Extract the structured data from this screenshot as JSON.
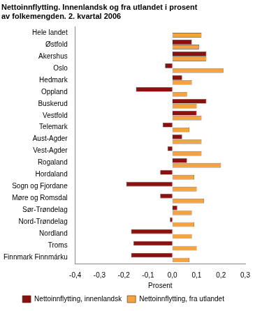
{
  "chart_data": {
    "type": "bar",
    "orientation": "horizontal",
    "title": [
      "Nettoinnflytting. Innenlandsk og fra utlandet i prosent",
      "av folkemengden. 2. kvartal 2006"
    ],
    "x_label": "Prosent",
    "categories": [
      "Hele landet",
      "Østfold",
      "Akershus",
      "Oslo",
      "Hedmark",
      "Oppland",
      "Buskerud",
      "Vestfold",
      "Telemark",
      "Aust-Agder",
      "Vest-Agder",
      "Rogaland",
      "Hordaland",
      "Sogn og Fjordane",
      "Møre og Romsdal",
      "Sør-Trøndelag",
      "Nord-Trøndelag",
      "Nordland",
      "Troms",
      "Finnmark Finnmárku"
    ],
    "series": [
      {
        "name": "Nettoinnflytting, innenlandsk",
        "color": "#8b1010",
        "values": [
          0,
          0.08,
          0.14,
          -0.03,
          0.04,
          -0.15,
          0.14,
          0.1,
          -0.04,
          0.04,
          -0.02,
          0.06,
          -0.05,
          -0.19,
          -0.05,
          0.02,
          -0.01,
          -0.17,
          -0.16,
          -0.17
        ]
      },
      {
        "name": "Nettoinnflytting, fra utlandet",
        "color": "#f5a240",
        "values": [
          0.12,
          0.11,
          0.14,
          0.21,
          0.08,
          0.06,
          0.1,
          0.12,
          0.07,
          0.12,
          0.12,
          0.2,
          0.09,
          0.1,
          0.13,
          0.08,
          0.09,
          0.08,
          0.1,
          0.07
        ]
      }
    ],
    "xlim": [
      -0.4,
      0.3
    ],
    "xticks": [
      {
        "value": -0.4,
        "label": "-0,4"
      },
      {
        "value": -0.3,
        "label": "-0,3"
      },
      {
        "value": -0.2,
        "label": "-0,2"
      },
      {
        "value": -0.1,
        "label": "-0,1"
      },
      {
        "value": 0,
        "label": "0,0"
      },
      {
        "value": 0.1,
        "label": "0,1"
      },
      {
        "value": 0.2,
        "label": "0,2"
      },
      {
        "value": 0.3,
        "label": "0,3"
      }
    ],
    "grid": false,
    "legend": "bottom"
  }
}
